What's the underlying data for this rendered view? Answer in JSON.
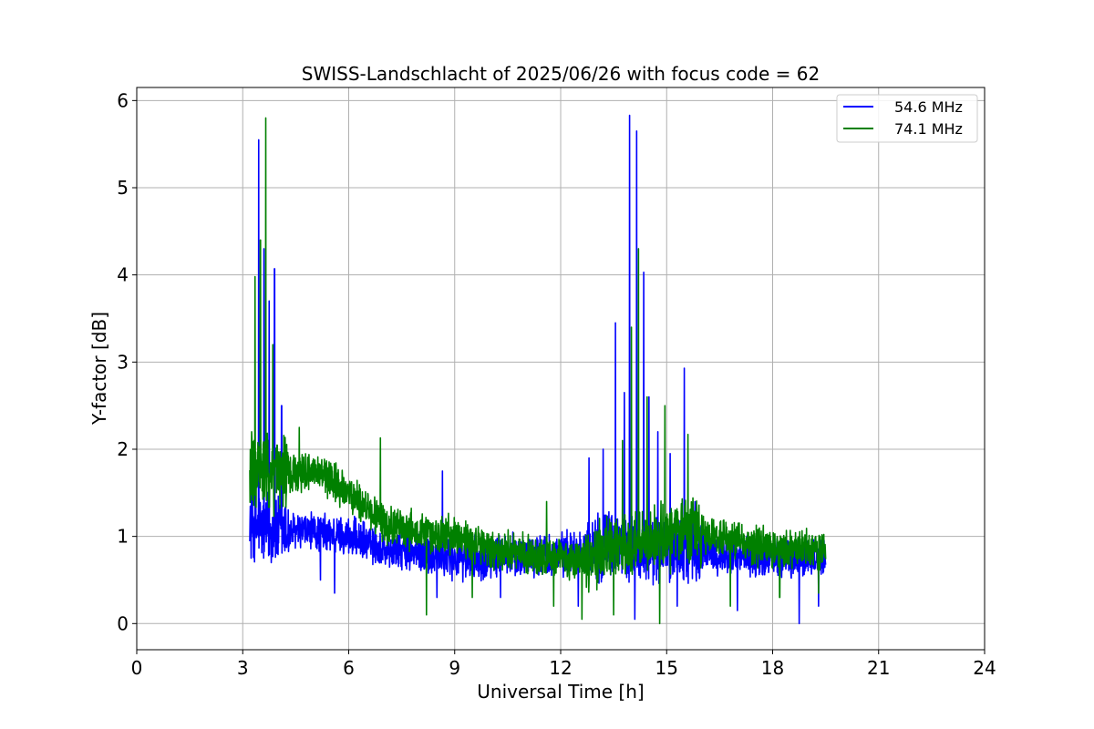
{
  "chart_data": {
    "type": "line",
    "title": "SWISS-Landschlacht of 2025/06/26 with focus code = 62",
    "xlabel": "Universal Time [h]",
    "ylabel": "Y-factor [dB]",
    "xlim": [
      0,
      24
    ],
    "ylim": [
      -0.3,
      6.15
    ],
    "xticks": [
      0,
      3,
      6,
      9,
      12,
      15,
      18,
      21,
      24
    ],
    "yticks": [
      0,
      1,
      2,
      3,
      4,
      5,
      6
    ],
    "grid": true,
    "legend_position": "top-right",
    "x_range_of_data": [
      3.2,
      19.5
    ],
    "series": [
      {
        "name": "54.6 MHz",
        "color": "#0000ff",
        "baseline": [
          [
            3.2,
            1.15
          ],
          [
            4.0,
            1.05
          ],
          [
            5.0,
            1.05
          ],
          [
            6.0,
            1.0
          ],
          [
            7.0,
            0.85
          ],
          [
            8.0,
            0.8
          ],
          [
            9.0,
            0.75
          ],
          [
            10.0,
            0.75
          ],
          [
            11.0,
            0.8
          ],
          [
            12.0,
            0.8
          ],
          [
            12.7,
            0.85
          ],
          [
            13.5,
            0.9
          ],
          [
            14.5,
            0.85
          ],
          [
            15.5,
            0.85
          ],
          [
            16.5,
            0.8
          ],
          [
            17.5,
            0.75
          ],
          [
            18.5,
            0.75
          ],
          [
            19.5,
            0.75
          ]
        ],
        "peaks": [
          [
            3.25,
            1.6
          ],
          [
            3.45,
            5.55
          ],
          [
            3.6,
            4.3
          ],
          [
            3.75,
            3.7
          ],
          [
            3.9,
            4.07
          ],
          [
            4.1,
            2.5
          ],
          [
            8.65,
            1.75
          ],
          [
            12.8,
            1.9
          ],
          [
            13.2,
            2.0
          ],
          [
            13.55,
            3.45
          ],
          [
            13.8,
            2.65
          ],
          [
            13.95,
            5.83
          ],
          [
            14.15,
            5.65
          ],
          [
            14.35,
            4.03
          ],
          [
            14.5,
            2.6
          ],
          [
            14.75,
            2.2
          ],
          [
            15.1,
            1.95
          ],
          [
            15.5,
            2.93
          ],
          [
            15.8,
            1.4
          ]
        ],
        "dips": [
          [
            5.2,
            0.5
          ],
          [
            5.6,
            0.35
          ],
          [
            8.5,
            0.3
          ],
          [
            10.3,
            0.3
          ],
          [
            12.5,
            0.2
          ],
          [
            14.1,
            0.05
          ],
          [
            15.3,
            0.2
          ],
          [
            17.0,
            0.15
          ],
          [
            18.75,
            0.0
          ],
          [
            19.3,
            0.2
          ]
        ]
      },
      {
        "name": "74.1 MHz",
        "color": "#008000",
        "baseline": [
          [
            3.2,
            1.75
          ],
          [
            4.0,
            1.7
          ],
          [
            5.0,
            1.75
          ],
          [
            6.0,
            1.5
          ],
          [
            7.0,
            1.15
          ],
          [
            8.0,
            1.05
          ],
          [
            9.0,
            1.0
          ],
          [
            10.0,
            0.85
          ],
          [
            11.0,
            0.8
          ],
          [
            12.0,
            0.75
          ],
          [
            12.7,
            0.75
          ],
          [
            13.5,
            0.85
          ],
          [
            14.5,
            0.95
          ],
          [
            15.5,
            1.05
          ],
          [
            16.5,
            1.0
          ],
          [
            17.5,
            0.9
          ],
          [
            18.5,
            0.85
          ],
          [
            19.5,
            0.85
          ]
        ],
        "peaks": [
          [
            3.25,
            2.2
          ],
          [
            3.35,
            3.98
          ],
          [
            3.5,
            4.4
          ],
          [
            3.65,
            5.8
          ],
          [
            3.85,
            3.2
          ],
          [
            4.6,
            2.25
          ],
          [
            6.9,
            2.13
          ],
          [
            11.6,
            1.4
          ],
          [
            13.75,
            2.1
          ],
          [
            14.0,
            3.4
          ],
          [
            14.2,
            4.3
          ],
          [
            14.45,
            2.6
          ],
          [
            14.95,
            2.5
          ],
          [
            15.6,
            2.17
          ]
        ],
        "dips": [
          [
            8.2,
            0.1
          ],
          [
            9.5,
            0.3
          ],
          [
            11.8,
            0.2
          ],
          [
            12.6,
            0.05
          ],
          [
            13.5,
            0.1
          ],
          [
            14.8,
            0.0
          ],
          [
            16.8,
            0.2
          ],
          [
            18.2,
            0.3
          ],
          [
            19.3,
            0.35
          ]
        ]
      }
    ]
  }
}
